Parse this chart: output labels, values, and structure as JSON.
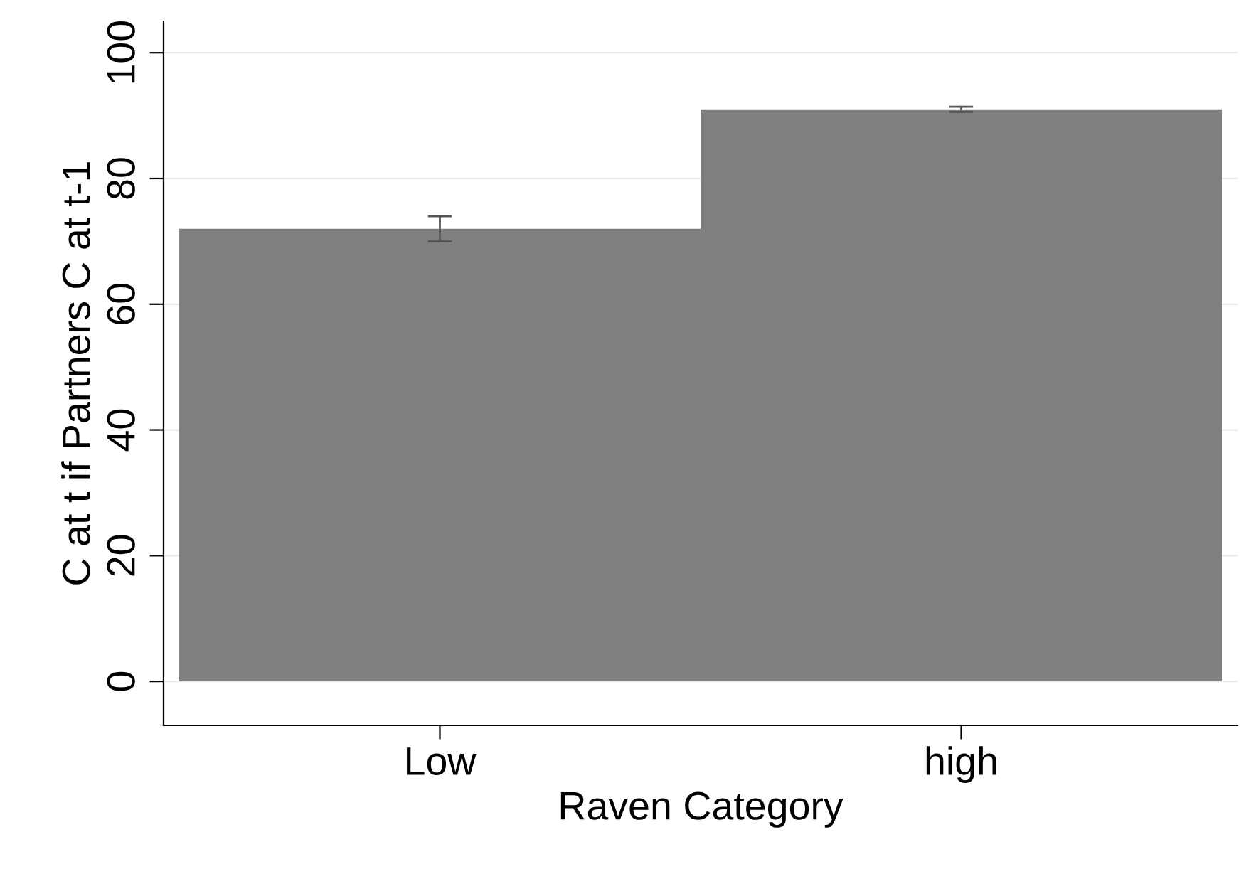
{
  "chart_data": {
    "type": "bar",
    "xlabel": "Raven Category",
    "ylabel": "C at t if Partners C at t-1",
    "categories": [
      "Low",
      "high"
    ],
    "values": [
      72,
      91
    ],
    "errors": [
      2,
      0.4
    ],
    "color": "#7f7f7f",
    "ylim": [
      -7,
      105
    ],
    "yticks": [
      0,
      20,
      40,
      60,
      80,
      100
    ],
    "grid": "y"
  }
}
